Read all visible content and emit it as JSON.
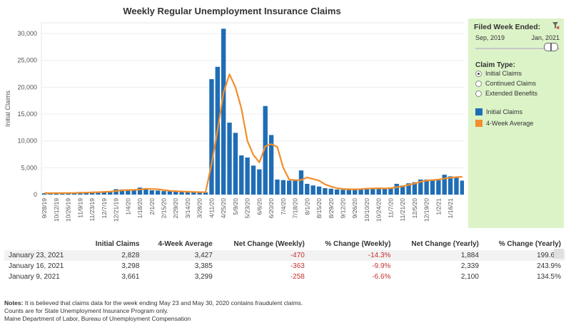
{
  "title": "Weekly Regular Unemployment Insurance Claims",
  "panel": {
    "header": "Filed Week Ended:",
    "range_start": "Sep, 2019",
    "range_end": "Jan, 2021",
    "claim_type_label": "Claim Type:",
    "options": [
      "Initial Claims",
      "Continued Claims",
      "Extended Benefits"
    ],
    "selected_option": "Initial Claims",
    "legend": [
      {
        "label": "Initial Claims",
        "color": "#1f6db5"
      },
      {
        "label": "4-Week Average",
        "color": "#f28e2b"
      }
    ]
  },
  "chart_data": {
    "type": "bar",
    "ylabel": "Initial Claims",
    "ylim": [
      0,
      32000
    ],
    "yticks": [
      0,
      5000,
      10000,
      15000,
      20000,
      25000,
      30000
    ],
    "ytick_labels": [
      "0",
      "5,000",
      "10,000",
      "15,000",
      "20,000",
      "25,000",
      "30,000"
    ],
    "xtick_labels": [
      "9/28/19",
      "10/12/19",
      "10/26/19",
      "11/9/19",
      "11/23/19",
      "12/7/19",
      "12/21/19",
      "1/4/20",
      "1/18/20",
      "2/1/20",
      "2/15/20",
      "2/29/20",
      "3/14/20",
      "3/28/20",
      "4/11/20",
      "4/25/20",
      "5/9/20",
      "5/23/20",
      "6/6/20",
      "6/20/20",
      "7/4/20",
      "7/18/20",
      "8/1/20",
      "8/15/20",
      "8/29/20",
      "9/12/20",
      "9/26/20",
      "10/10/20",
      "10/24/20",
      "11/7/20",
      "11/21/20",
      "12/5/20",
      "12/19/20",
      "1/2/21",
      "1/16/21"
    ],
    "colors": {
      "bars": "#1f6db5",
      "line": "#f28e2b"
    },
    "series": [
      {
        "name": "Initial Claims",
        "values": [
          250,
          260,
          300,
          280,
          320,
          350,
          400,
          420,
          480,
          500,
          600,
          650,
          1000,
          950,
          750,
          800,
          1300,
          1200,
          800,
          750,
          650,
          600,
          550,
          500,
          450,
          430,
          400,
          410,
          21500,
          23800,
          30900,
          13400,
          11500,
          7300,
          6900,
          5400,
          4700,
          16500,
          11100,
          2800,
          2700,
          2600,
          2700,
          4500,
          2000,
          1700,
          1500,
          1200,
          1100,
          950,
          900,
          1000,
          1050,
          1100,
          1200,
          1150,
          1200,
          1100,
          1300,
          2000,
          1700,
          2100,
          2300,
          2800,
          2800,
          2600,
          2700,
          3700,
          3400,
          3300,
          2600
        ]
      },
      {
        "name": "4-Week Average",
        "values": [
          280,
          270,
          275,
          275,
          290,
          310,
          340,
          370,
          410,
          450,
          500,
          560,
          660,
          800,
          850,
          870,
          950,
          1070,
          1030,
          1000,
          850,
          700,
          640,
          580,
          530,
          490,
          460,
          440,
          5700,
          12000,
          19000,
          22400,
          20000,
          16000,
          10000,
          7400,
          6000,
          9000,
          9400,
          8900,
          5000,
          2800,
          2700,
          2700,
          3200,
          2900,
          2600,
          1900,
          1500,
          1200,
          1050,
          1000,
          980,
          1020,
          1100,
          1150,
          1180,
          1160,
          1190,
          1400,
          1550,
          1800,
          2050,
          2400,
          2600,
          2700,
          2800,
          3000,
          3150,
          3250,
          3300
        ]
      }
    ]
  },
  "table": {
    "headers": [
      "Initial Claims",
      "4-Week Average",
      "Net Change (Weekly)",
      "% Change (Weekly)",
      "Net Change (Yearly)",
      "% Change (Yearly)"
    ],
    "rows": [
      {
        "date": "January 23, 2021",
        "ic": "2,828",
        "avg": "3,427",
        "ncw": "-470",
        "pcw": "-14.3%",
        "ncy": "1,884",
        "pcy": "199.6%"
      },
      {
        "date": "January 16, 2021",
        "ic": "3,298",
        "avg": "3,385",
        "ncw": "-363",
        "pcw": "-9.9%",
        "ncy": "2,339",
        "pcy": "243.9%"
      },
      {
        "date": "January 9, 2021",
        "ic": "3,661",
        "avg": "3,299",
        "ncw": "-258",
        "pcw": "-6.6%",
        "ncy": "2,100",
        "pcy": "134.5%"
      }
    ]
  },
  "notes": {
    "label": "Notes:",
    "line1": "It is believed that claims data for the week ending May 23 and May 30, 2020 contains fraudulent claims.",
    "line2": "Counts are for State Unemployment Insurance Program only.",
    "line3": "Maine Department of Labor, Bureau of Unemployment Compensation"
  }
}
